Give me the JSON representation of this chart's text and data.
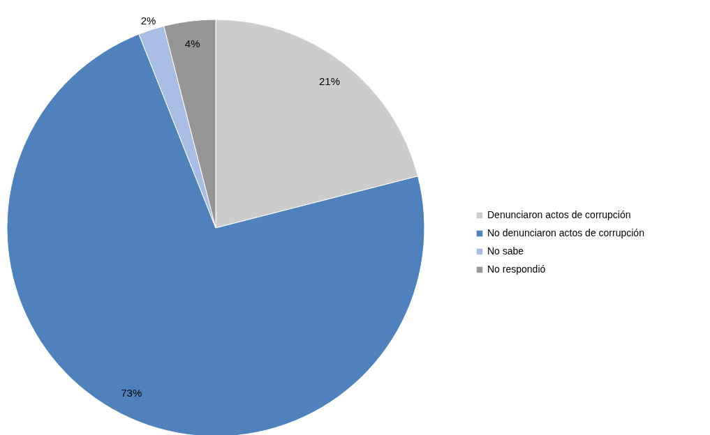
{
  "chart_data": {
    "type": "pie",
    "categories": [
      "Denunciaron actos de corrupción",
      "No denunciaron actos de corrupción",
      "No sabe",
      "No respondió"
    ],
    "values": [
      21,
      73,
      2,
      4
    ],
    "colors": [
      "#cccccc",
      "#4f81bd",
      "#a9bce4",
      "#969696"
    ],
    "value_labels": [
      "21%",
      "73%",
      "2%",
      "4%"
    ],
    "legend": "right"
  }
}
